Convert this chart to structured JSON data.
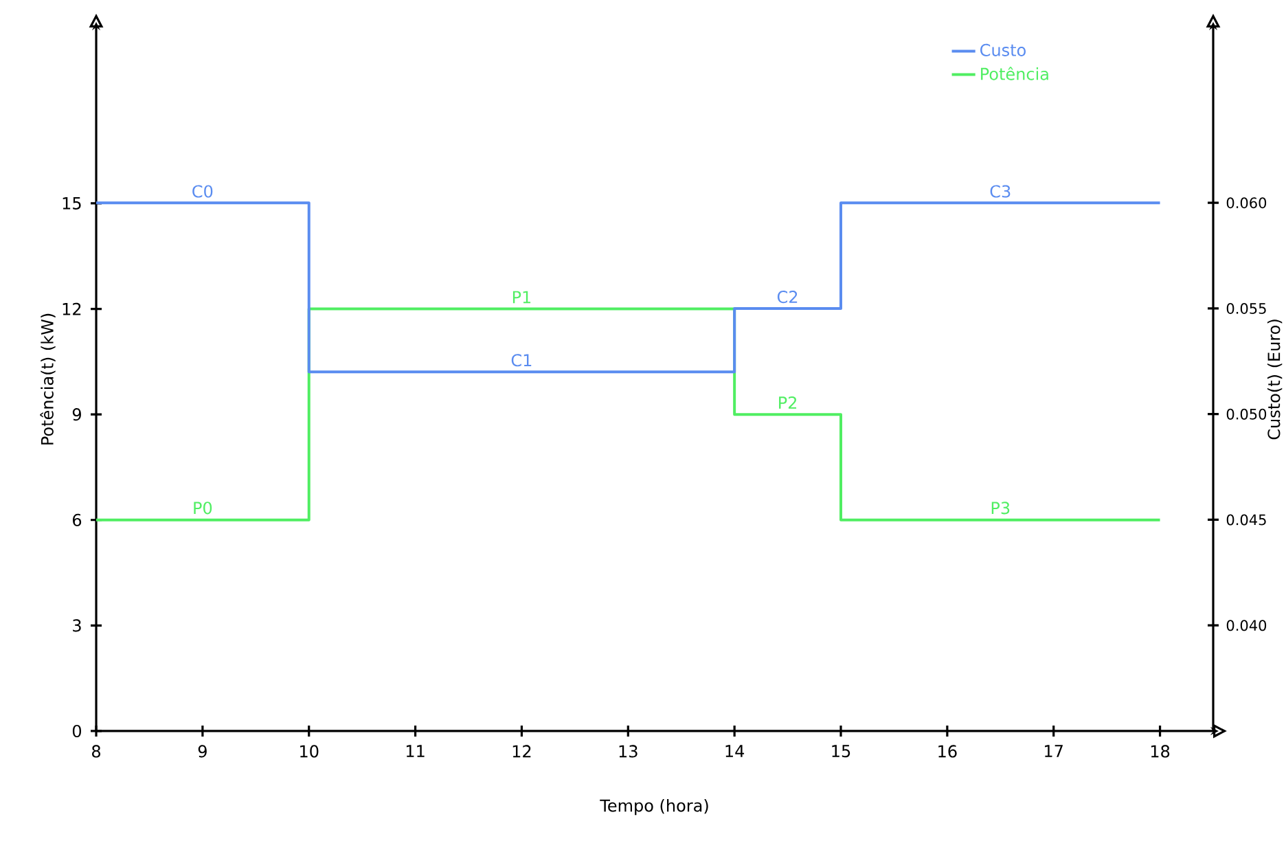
{
  "chart_data": {
    "type": "step",
    "xlabel": "Tempo (hora)",
    "ylabel": "Potência(t) (kW)",
    "y2label": "Custo(t) (Euro)",
    "x": [
      8,
      10,
      14,
      15,
      18
    ],
    "series": [
      {
        "name": "Custo",
        "color": "#5a8cf0",
        "axis": "y2",
        "values": [
          0.06,
          0.052,
          0.055,
          0.06,
          0.06
        ]
      },
      {
        "name": "Potência",
        "color": "#50ee62",
        "values": [
          6,
          12,
          9,
          6,
          6
        ]
      }
    ],
    "xlim": [
      8,
      18.5
    ],
    "xticks": [
      8,
      9,
      10,
      11,
      12,
      13,
      14,
      15,
      16,
      17,
      18
    ],
    "ylim": [
      0,
      20
    ],
    "yticks": [
      0,
      3,
      6,
      9,
      12,
      15
    ],
    "y2lim": [
      0.035,
      0.0683
    ],
    "y2ticks": [
      {
        "value": 0.04,
        "label": "0.040"
      },
      {
        "value": 0.045,
        "label": "0.045"
      },
      {
        "value": 0.05,
        "label": "0.050"
      },
      {
        "value": 0.055,
        "label": "0.055"
      },
      {
        "value": 0.06,
        "label": "0.060"
      }
    ],
    "annotations": [
      {
        "text": "C0",
        "x": 9,
        "y": 15
      },
      {
        "text": "C1",
        "x": 12,
        "y": 10.2
      },
      {
        "text": "C2",
        "x": 14.5,
        "y": 12
      },
      {
        "text": "C3",
        "x": 16.5,
        "y": 15
      },
      {
        "text": "P0",
        "x": 9,
        "y": 6
      },
      {
        "text": "P1",
        "x": 12,
        "y": 12
      },
      {
        "text": "P2",
        "x": 14.5,
        "y": 9
      },
      {
        "text": "P3",
        "x": 16.5,
        "y": 6
      }
    ],
    "grid": false,
    "legend": "top right"
  }
}
